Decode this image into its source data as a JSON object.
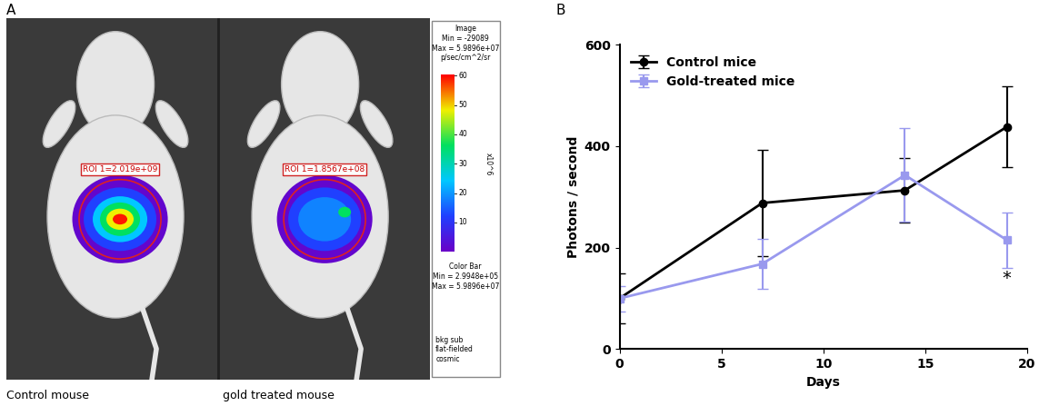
{
  "panel_labels": [
    "A",
    "B"
  ],
  "panel_a": {
    "images": [
      {
        "caption": "Control mouse",
        "roi_label": "ROI 1=2.019e+09"
      },
      {
        "caption": "gold treated mouse",
        "roi_label": "ROI 1=1.8567e+08"
      }
    ],
    "image_header": [
      "Image",
      "Min = -29089",
      "Max = 5.9896e+07",
      "p/sec/cm^2/sr"
    ],
    "colorbar": {
      "lim": [
        0,
        60
      ],
      "ticks": [
        10,
        20,
        30,
        40,
        50,
        60
      ],
      "label": "x10^6"
    },
    "color_bar_header": [
      "Color Bar",
      "Min = 2.9948e+05",
      "Max = 5.9896e+07"
    ],
    "notes": [
      "bkg sub",
      "flat-fielded",
      "cosmic"
    ]
  },
  "chart_data": {
    "type": "line",
    "x_label": "Days",
    "y_label": "Photons / second",
    "x": [
      0,
      7,
      14,
      19
    ],
    "series": [
      {
        "name": "Control mice",
        "color": "#000000",
        "marker": "circle",
        "values": [
          100,
          288,
          313,
          438
        ],
        "errors": [
          50,
          105,
          63,
          80
        ]
      },
      {
        "name": "Gold-treated mice",
        "color": "#9999ee",
        "marker": "square",
        "values": [
          100,
          168,
          343,
          215
        ],
        "errors": [
          25,
          50,
          92,
          55
        ]
      }
    ],
    "xlim": [
      0,
      20
    ],
    "xticks": [
      0,
      5,
      10,
      15,
      20
    ],
    "ylim": [
      0,
      600
    ],
    "yticks": [
      0,
      200,
      400,
      600
    ],
    "legend": "upper left",
    "annotations": [
      {
        "text": "*",
        "x": 19,
        "y": 140
      }
    ]
  }
}
